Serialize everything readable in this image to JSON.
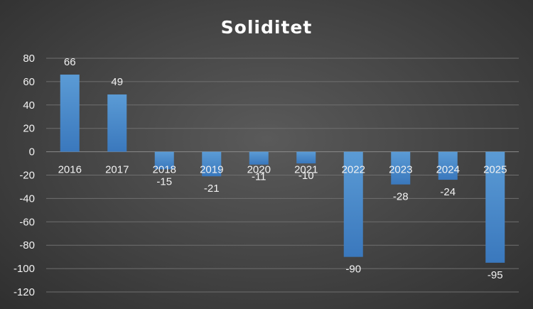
{
  "chart_data": {
    "type": "bar",
    "title": "Soliditet",
    "xlabel": "",
    "ylabel": "",
    "categories": [
      "2016",
      "2017",
      "2018",
      "2019",
      "2020",
      "2021",
      "2022",
      "2023",
      "2024",
      "2025"
    ],
    "values": [
      66,
      49,
      -15,
      -21,
      -11,
      -10,
      -90,
      -28,
      -24,
      -95
    ],
    "ylim": [
      -120,
      80
    ],
    "yticks": [
      80,
      60,
      40,
      20,
      0,
      -20,
      -40,
      -60,
      -80,
      -100,
      -120
    ],
    "grid": true,
    "legend": "none",
    "data_labels": true,
    "colors": {
      "bar_top": "#5b9bd5",
      "bar_bottom": "#3a78bd",
      "text": "#f2f2f2",
      "grid": "#6f6f6f"
    }
  }
}
